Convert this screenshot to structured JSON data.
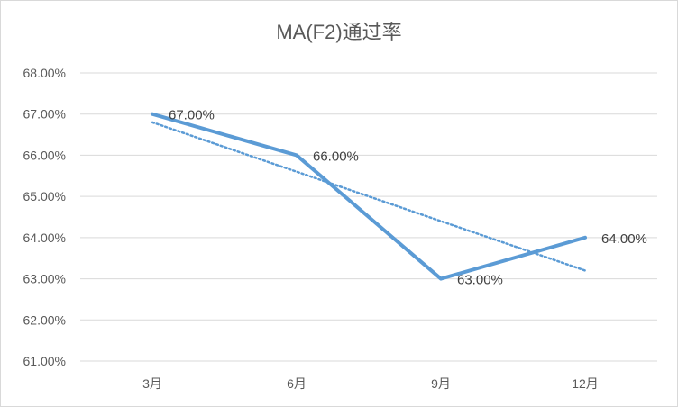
{
  "chart_data": {
    "type": "line",
    "title": "MA(F2)通过率",
    "xlabel": "",
    "ylabel": "",
    "categories": [
      "3月",
      "6月",
      "9月",
      "12月"
    ],
    "series": [
      {
        "values": [
          0.67,
          0.66,
          0.63,
          0.64
        ],
        "data_labels": [
          "67.00%",
          "66.00%",
          "63.00%",
          "64.00%"
        ],
        "color": "#5b9bd5"
      }
    ],
    "trendline": {
      "type": "linear",
      "style": "dotted",
      "color": "#5b9bd5",
      "values": [
        0.668,
        0.656,
        0.644,
        0.632
      ]
    },
    "ylim": [
      0.61,
      0.68
    ],
    "y_ticks": [
      0.61,
      0.62,
      0.63,
      0.64,
      0.65,
      0.66,
      0.67,
      0.68
    ],
    "y_tick_labels": [
      "61.00%",
      "62.00%",
      "63.00%",
      "64.00%",
      "65.00%",
      "66.00%",
      "67.00%",
      "68.00%"
    ],
    "grid": true,
    "legend": "none",
    "colors": {
      "gridline": "#d9d9d9",
      "text": "#595959",
      "data_label": "#404040",
      "background": "#ffffff"
    }
  }
}
